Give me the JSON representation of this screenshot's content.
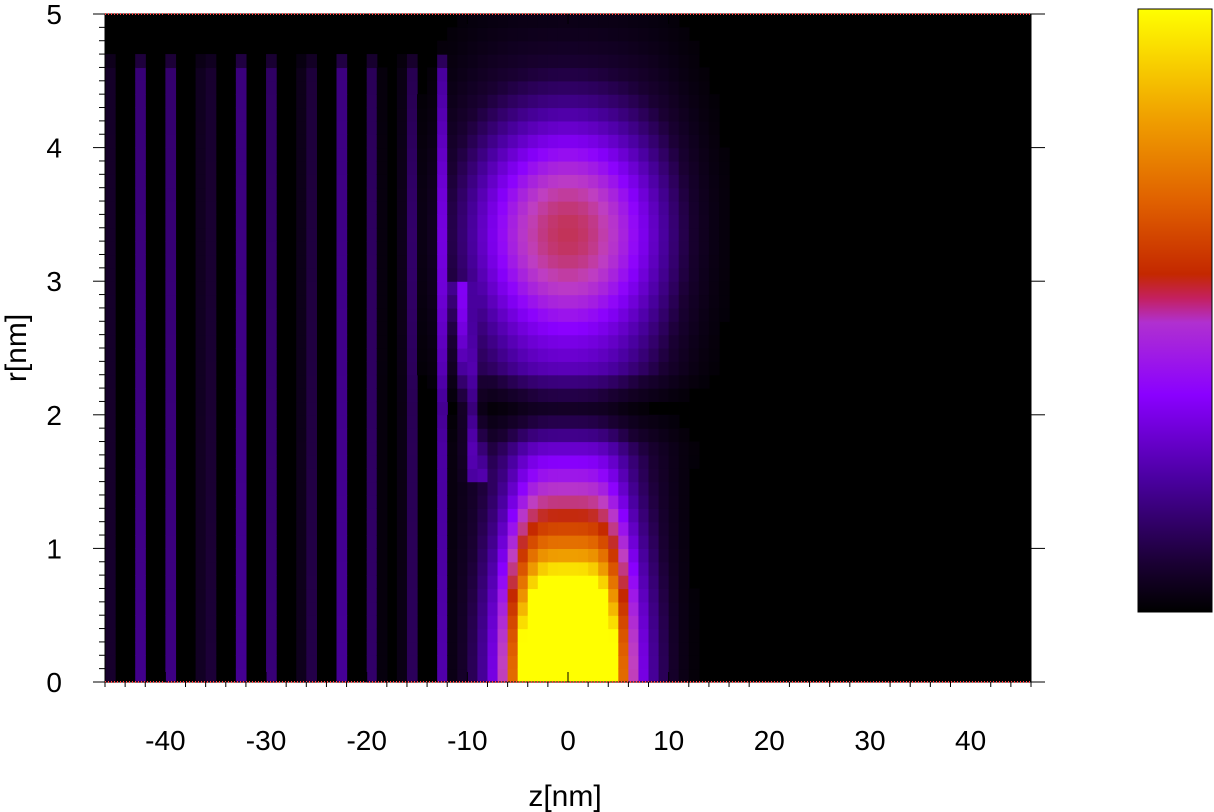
{
  "chart_data": {
    "type": "heatmap",
    "xlabel": "z[nm]",
    "ylabel": "r[nm]",
    "xlim": [
      -46,
      46
    ],
    "ylim": [
      0,
      5
    ],
    "x_ticks": [
      -40,
      -30,
      -20,
      -10,
      0,
      10,
      20,
      30,
      40
    ],
    "y_ticks": [
      0,
      1,
      2,
      3,
      4,
      5
    ],
    "colormap": [
      "#000000",
      "#1a0033",
      "#4a00a0",
      "#8a00ff",
      "#c040c0",
      "#c42800",
      "#e06000",
      "#f0a000",
      "#ffff00"
    ],
    "colorbar_tick_labels": [],
    "grid": false,
    "features": {
      "main_peak_center": [
        0,
        0
      ],
      "upper_lobe_center": [
        0,
        3.4
      ],
      "node_line_r": 2.05,
      "fringe_region_z": [
        -46,
        -10
      ],
      "fringe_top_r": 4.6
    }
  }
}
